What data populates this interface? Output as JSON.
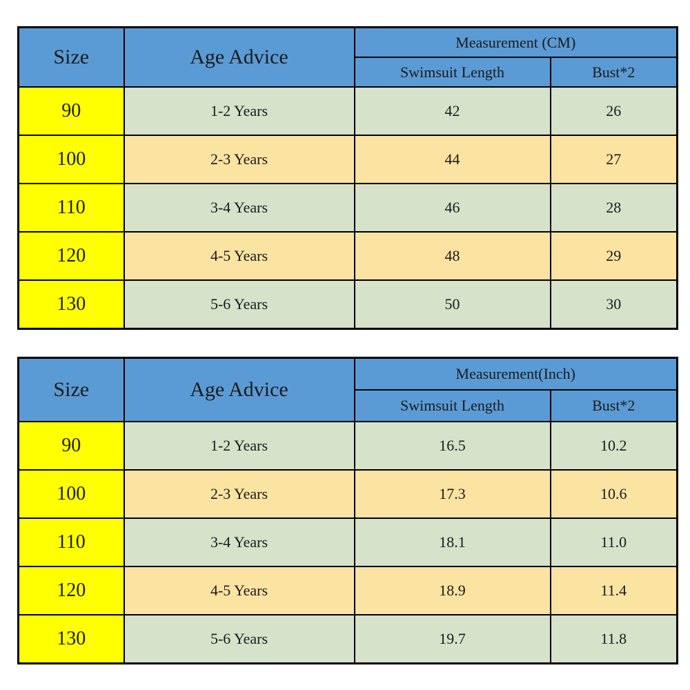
{
  "colors": {
    "header_blue": "#5b9bd5",
    "size_yellow": "#ffff00",
    "row_green": "#d6e2ca",
    "row_tan": "#fbe3a2",
    "border": "#000000",
    "text": "#1b1b1b",
    "background": "#ffffff"
  },
  "chart_data": [
    {
      "type": "table",
      "title": "Measurement (CM)",
      "headers": {
        "size": "Size",
        "age": "Age Advice",
        "group": "Measurement (CM)",
        "length": "Swimsuit Length",
        "bust": "Bust*2"
      },
      "rows": [
        {
          "size": "90",
          "age": "1-2 Years",
          "length": "42",
          "bust": "26"
        },
        {
          "size": "100",
          "age": "2-3 Years",
          "length": "44",
          "bust": "27"
        },
        {
          "size": "110",
          "age": "3-4 Years",
          "length": "46",
          "bust": "28"
        },
        {
          "size": "120",
          "age": "4-5 Years",
          "length": "48",
          "bust": "29"
        },
        {
          "size": "130",
          "age": "5-6 Years",
          "length": "50",
          "bust": "30"
        }
      ]
    },
    {
      "type": "table",
      "title": "Measurement(Inch)",
      "headers": {
        "size": "Size",
        "age": "Age Advice",
        "group": "Measurement(Inch)",
        "length": "Swimsuit Length",
        "bust": "Bust*2"
      },
      "rows": [
        {
          "size": "90",
          "age": "1-2 Years",
          "length": "16.5",
          "bust": "10.2"
        },
        {
          "size": "100",
          "age": "2-3 Years",
          "length": "17.3",
          "bust": "10.6"
        },
        {
          "size": "110",
          "age": "3-4 Years",
          "length": "18.1",
          "bust": "11.0"
        },
        {
          "size": "120",
          "age": "4-5 Years",
          "length": "18.9",
          "bust": "11.4"
        },
        {
          "size": "130",
          "age": "5-6 Years",
          "length": "19.7",
          "bust": "11.8"
        }
      ]
    }
  ]
}
